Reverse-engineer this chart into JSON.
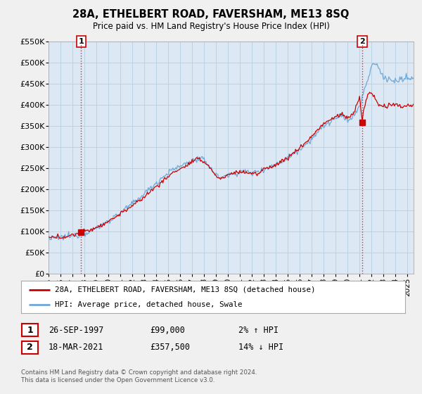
{
  "title": "28A, ETHELBERT ROAD, FAVERSHAM, ME13 8SQ",
  "subtitle": "Price paid vs. HM Land Registry's House Price Index (HPI)",
  "ylim": [
    0,
    550000
  ],
  "yticks": [
    0,
    50000,
    100000,
    150000,
    200000,
    250000,
    300000,
    350000,
    400000,
    450000,
    500000,
    550000
  ],
  "ytick_labels": [
    "£0",
    "£50K",
    "£100K",
    "£150K",
    "£200K",
    "£250K",
    "£300K",
    "£350K",
    "£400K",
    "£450K",
    "£500K",
    "£550K"
  ],
  "xlim_start": 1995.0,
  "xlim_end": 2025.5,
  "xticks": [
    1995,
    1996,
    1997,
    1998,
    1999,
    2000,
    2001,
    2002,
    2003,
    2004,
    2005,
    2006,
    2007,
    2008,
    2009,
    2010,
    2011,
    2012,
    2013,
    2014,
    2015,
    2016,
    2017,
    2018,
    2019,
    2020,
    2021,
    2022,
    2023,
    2024,
    2025
  ],
  "bg_color": "#f0f0f0",
  "plot_bg_color": "#dce9f5",
  "grid_color": "#b8cfe0",
  "hpi_color": "#6ea8d8",
  "price_color": "#cc0000",
  "marker1_date": 1997.73,
  "marker1_value": 99000,
  "marker2_date": 2021.21,
  "marker2_value": 357500,
  "legend_line1": "28A, ETHELBERT ROAD, FAVERSHAM, ME13 8SQ (detached house)",
  "legend_line2": "HPI: Average price, detached house, Swale",
  "annotation1_date": "26-SEP-1997",
  "annotation1_price": "£99,000",
  "annotation1_hpi": "2% ↑ HPI",
  "annotation2_date": "18-MAR-2021",
  "annotation2_price": "£357,500",
  "annotation2_hpi": "14% ↓ HPI",
  "footer": "Contains HM Land Registry data © Crown copyright and database right 2024.\nThis data is licensed under the Open Government Licence v3.0."
}
